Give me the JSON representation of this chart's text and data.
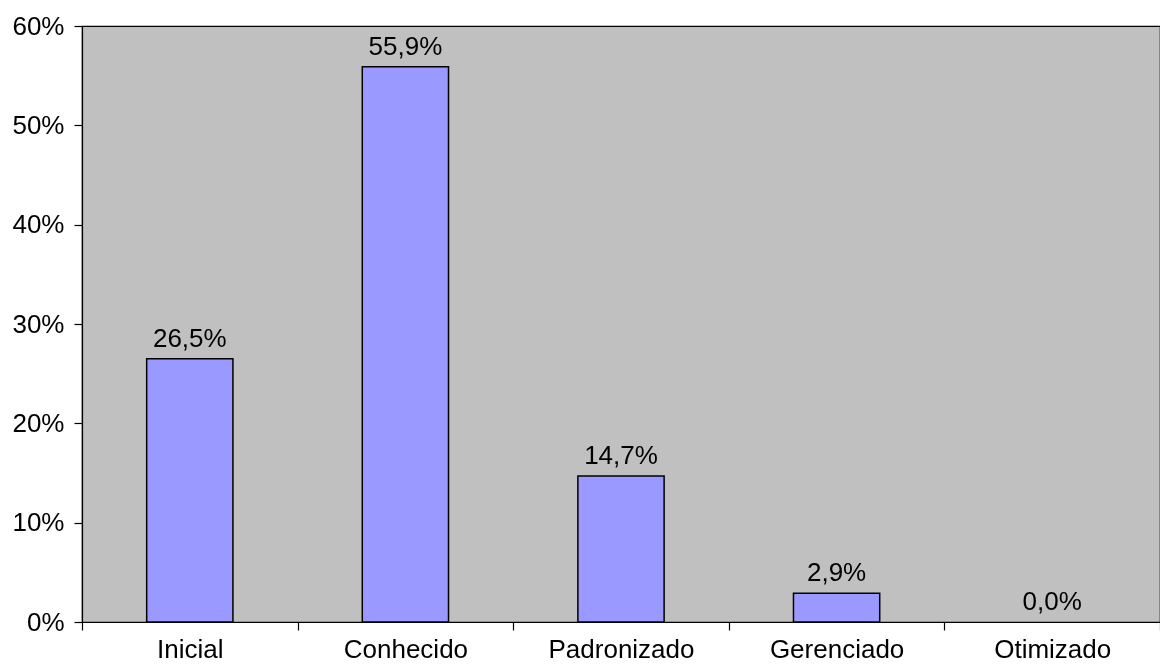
{
  "chart_data": {
    "type": "bar",
    "categories": [
      "Inicial",
      "Conhecido",
      "Padronizado",
      "Gerenciado",
      "Otimizado"
    ],
    "values": [
      26.5,
      55.9,
      14.7,
      2.9,
      0.0
    ],
    "value_labels": [
      "26,5%",
      "55,9%",
      "14,7%",
      "2,9%",
      "0,0%"
    ],
    "color": "#9999ff",
    "ylim": [
      0,
      60
    ],
    "yticks": [
      {
        "value": 0,
        "label": "0%"
      },
      {
        "value": 10,
        "label": "10%"
      },
      {
        "value": 20,
        "label": "20%"
      },
      {
        "value": 30,
        "label": "30%"
      },
      {
        "value": 40,
        "label": "40%"
      },
      {
        "value": 50,
        "label": "50%"
      },
      {
        "value": 60,
        "label": "60%"
      }
    ],
    "grid": false
  }
}
